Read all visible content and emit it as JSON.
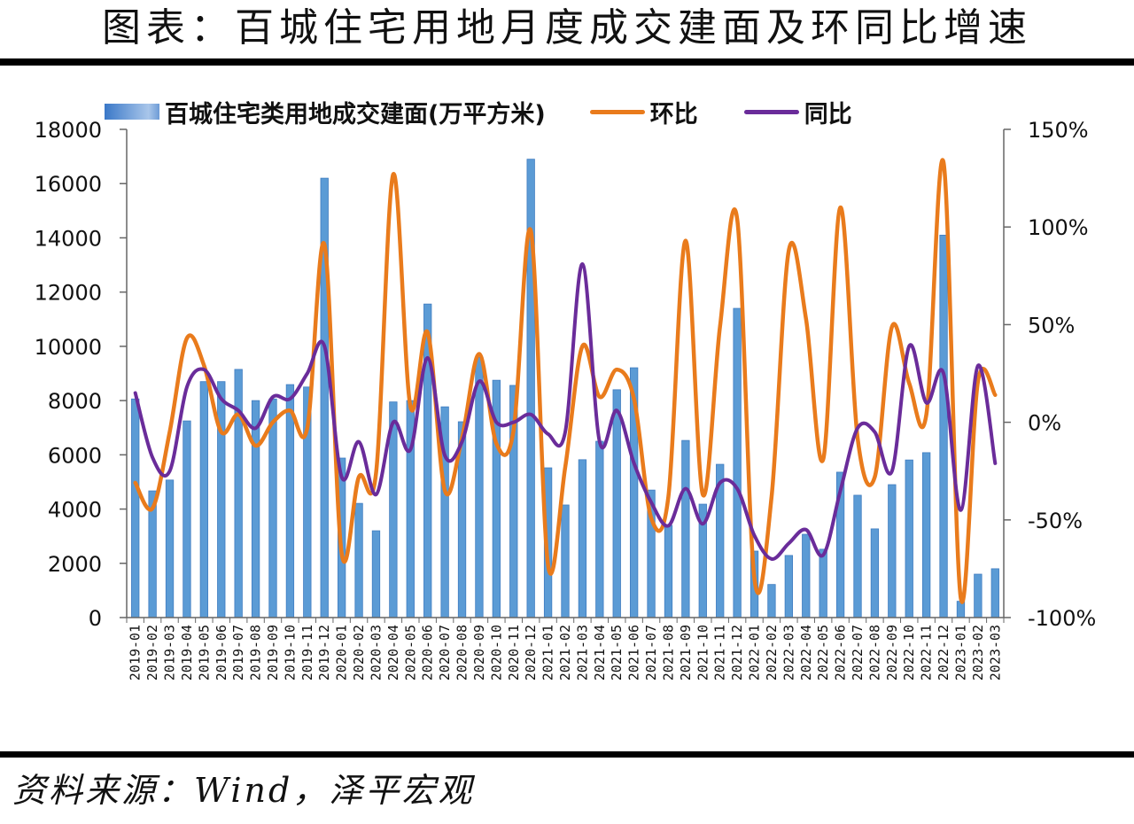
{
  "header": {
    "title": "图表：百城住宅用地月度成交建面及环同比增速"
  },
  "footer": {
    "source": "资料来源：Wind，泽平宏观"
  },
  "legend": {
    "bar_label": "百城住宅类用地成交建面(万平方米)",
    "mom_label": "环比",
    "yoy_label": "同比"
  },
  "colors": {
    "bar": "#5b9bd5",
    "bar_edge": "#3f7cc0",
    "mom": "#e97b1c",
    "yoy": "#6a2c9a",
    "axis": "#666666"
  },
  "chart_data": {
    "type": "bar",
    "title": "图表：百城住宅用地月度成交建面及环同比增速",
    "xlabel": "",
    "ylabel": "百城住宅类用地成交建面(万平方米)",
    "y2label": "环比 / 同比",
    "ylim": [
      0,
      18000
    ],
    "y2lim": [
      -100,
      150
    ],
    "yticks": [
      "0",
      "2000",
      "4000",
      "6000",
      "8000",
      "10000",
      "12000",
      "14000",
      "16000",
      "18000"
    ],
    "y2ticks": [
      "-100%",
      "-50%",
      "0%",
      "50%",
      "100%",
      "150%"
    ],
    "grid": false,
    "legend_position": "top",
    "categories": [
      "2019-01",
      "2019-02",
      "2019-03",
      "2019-04",
      "2019-05",
      "2019-06",
      "2019-07",
      "2019-08",
      "2019-09",
      "2019-10",
      "2019-11",
      "2019-12",
      "2020-01",
      "2020-02",
      "2020-03",
      "2020-04",
      "2020-05",
      "2020-06",
      "2020-07",
      "2020-08",
      "2020-09",
      "2020-10",
      "2020-11",
      "2020-12",
      "2021-01",
      "2021-02",
      "2021-03",
      "2021-04",
      "2021-05",
      "2021-06",
      "2021-07",
      "2021-08",
      "2021-09",
      "2021-10",
      "2021-11",
      "2021-12",
      "2022-01",
      "2022-02",
      "2022-03",
      "2022-04",
      "2022-05",
      "2022-06",
      "2022-07",
      "2022-08",
      "2022-09",
      "2022-10",
      "2022-11",
      "2022-12",
      "2023-01",
      "2023-02",
      "2023-03"
    ],
    "series": [
      {
        "name": "百城住宅类用地成交建面(万平方米)",
        "type": "bar",
        "axis": "left",
        "values": [
          8060,
          4670,
          5070,
          7250,
          8700,
          8700,
          9150,
          8000,
          8060,
          8590,
          8500,
          16200,
          5880,
          4210,
          3200,
          7950,
          8000,
          11560,
          7770,
          7220,
          9600,
          8750,
          8560,
          16900,
          5520,
          4150,
          5820,
          6500,
          8400,
          9210,
          4700,
          3400,
          6530,
          4180,
          5650,
          11400,
          2450,
          1220,
          2290,
          3070,
          2520,
          5360,
          4510,
          3270,
          4900,
          5810,
          6080,
          14100,
          600,
          1600,
          1800
        ]
      },
      {
        "name": "环比",
        "type": "line",
        "axis": "right",
        "unit": "%",
        "values": [
          -31,
          -44,
          -5,
          43,
          29,
          -5,
          4,
          -12,
          0,
          6,
          -3,
          91,
          -67,
          -28,
          -26,
          127,
          8,
          46,
          -35,
          -8,
          35,
          -11,
          -4,
          98,
          -73,
          -23,
          39,
          13,
          27,
          12,
          -49,
          -38,
          93,
          -37,
          49,
          104,
          -80,
          -38,
          88,
          53,
          -19,
          110,
          -8,
          -28,
          49,
          20,
          4,
          133,
          -90,
          21,
          14
        ]
      },
      {
        "name": "同比",
        "type": "line",
        "axis": "right",
        "unit": "%",
        "values": [
          15,
          -18,
          -25,
          18,
          27,
          12,
          6,
          -3,
          13,
          12,
          25,
          39,
          -28,
          -10,
          -37,
          0,
          -14,
          33,
          -17,
          -10,
          21,
          0,
          0,
          4,
          -6,
          -5,
          81,
          -10,
          6,
          -21,
          -41,
          -53,
          -34,
          -52,
          -31,
          -34,
          -58,
          -70,
          -62,
          -55,
          -68,
          -35,
          -3,
          -5,
          -25,
          39,
          10,
          25,
          -45,
          29,
          -21
        ]
      }
    ]
  }
}
